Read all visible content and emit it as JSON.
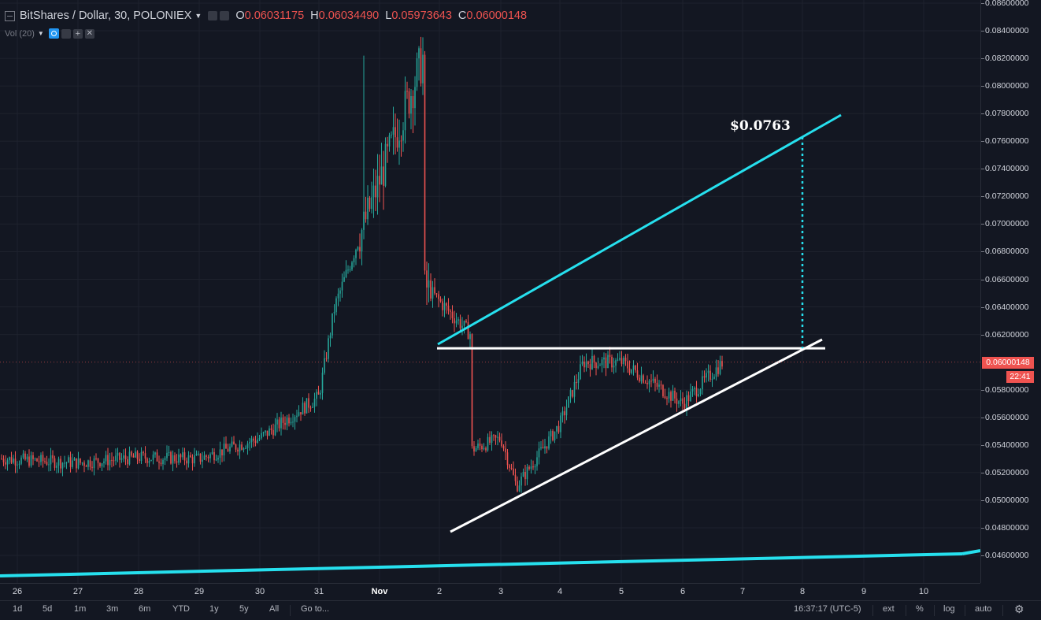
{
  "legend": {
    "symbol": "BitShares / Dollar, 30, POLONIEX",
    "open_label": "O",
    "open": "0.06031175",
    "high_label": "H",
    "high": "0.06034490",
    "low_label": "L",
    "low": "0.05973643",
    "close_label": "C",
    "close": "0.06000148",
    "vol_label": "Vol (20)",
    "colors": {
      "up": "#26a69a",
      "down": "#ef5350",
      "accent": "#2962ff"
    }
  },
  "price_axis": {
    "ticks": [
      "0.08600000",
      "0.08400000",
      "0.08200000",
      "0.08000000",
      "0.07800000",
      "0.07600000",
      "0.07400000",
      "0.07200000",
      "0.07000000",
      "0.06800000",
      "0.06600000",
      "0.06400000",
      "0.06200000",
      "0.05800000",
      "0.05600000",
      "0.05400000",
      "0.05200000",
      "0.05000000",
      "0.04800000",
      "0.04600000"
    ],
    "current_price": "0.06000148",
    "countdown": "22:41"
  },
  "time_axis": {
    "ticks": [
      "26",
      "27",
      "28",
      "29",
      "30",
      "31",
      "Nov",
      "2",
      "3",
      "4",
      "5",
      "6",
      "7",
      "8",
      "9",
      "10"
    ]
  },
  "annotation": {
    "target": "$0.0763"
  },
  "bottom_bar": {
    "ranges": [
      "1d",
      "5d",
      "1m",
      "3m",
      "6m",
      "YTD",
      "1y",
      "5y",
      "All"
    ],
    "goto": "Go to...",
    "time": "16:37:17 (UTC-5)",
    "ext": "ext",
    "percent": "%",
    "log": "log",
    "auto": "auto"
  },
  "chart_data": {
    "type": "candlestick",
    "title": "BitShares / Dollar, 30, POLONIEX",
    "ylim": [
      0.0445,
      0.0865
    ],
    "x": [
      "26",
      "27",
      "28",
      "29",
      "30",
      "31",
      "Nov",
      "2",
      "3",
      "4",
      "5",
      "6",
      "7",
      "8",
      "9",
      "10"
    ],
    "approx_close_path": [
      {
        "x": "26",
        "y": 0.053
      },
      {
        "x": "27",
        "y": 0.0527
      },
      {
        "x": "28",
        "y": 0.0531
      },
      {
        "x": "29",
        "y": 0.053
      },
      {
        "x": "30",
        "y": 0.0545
      },
      {
        "x": "31",
        "y": 0.0575
      },
      {
        "x": "31",
        "y": 0.064
      },
      {
        "x": "Nov",
        "y": 0.082
      },
      {
        "x": "Nov",
        "y": 0.069
      },
      {
        "x": "2",
        "y": 0.062
      },
      {
        "x": "2",
        "y": 0.053
      },
      {
        "x": "3",
        "y": 0.0545
      },
      {
        "x": "3",
        "y": 0.051
      },
      {
        "x": "4",
        "y": 0.0555
      },
      {
        "x": "4",
        "y": 0.06
      },
      {
        "x": "5",
        "y": 0.06
      },
      {
        "x": "6",
        "y": 0.057
      },
      {
        "x": "6",
        "y": 0.06
      }
    ],
    "drawings": {
      "resistance": 0.061,
      "target": 0.0763,
      "upper_channel_color": "#26e0ee",
      "trendline_color": "#ffffff"
    }
  }
}
